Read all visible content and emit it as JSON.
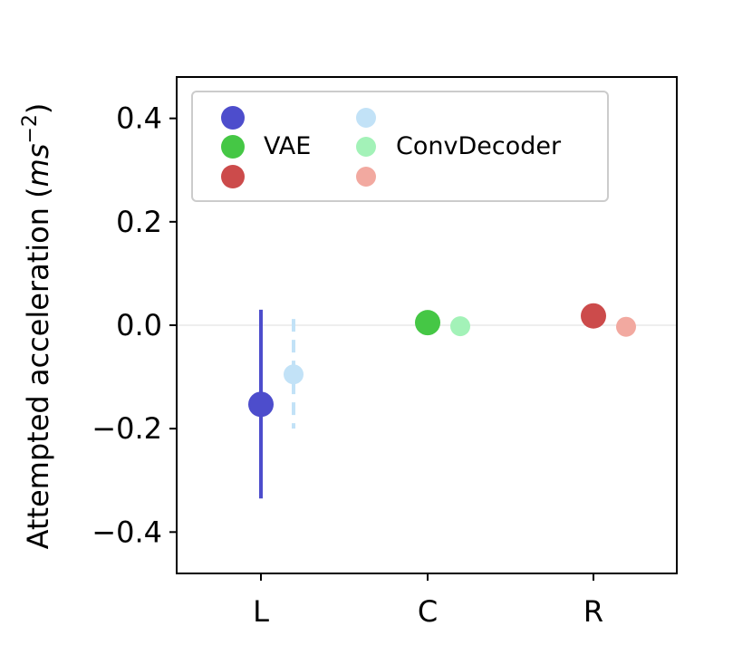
{
  "chart_data": {
    "type": "scatter",
    "categories": [
      "L",
      "C",
      "R"
    ],
    "ylabel": "Attempted acceleration",
    "ylabel_unit_base": "ms",
    "ylabel_unit_exp": "−2",
    "ylim": [
      -0.48,
      0.48
    ],
    "yticks": [
      0.4,
      0.2,
      0.0,
      -0.2,
      -0.4
    ],
    "ytick_labels": [
      "0.4",
      "0.2",
      "0.0",
      "−0.2",
      "−0.4"
    ],
    "zero_line": true,
    "legend_placement": "top-left",
    "series": [
      {
        "name": "VAE",
        "offset": "left",
        "line_style": "solid",
        "colors": [
          "#4d4dcc",
          "#45c745",
          "#cc4b4b"
        ],
        "points": [
          {
            "category": "L",
            "y": -0.153,
            "err_low": -0.335,
            "err_high": 0.03
          },
          {
            "category": "C",
            "y": 0.005,
            "err_low": 0.005,
            "err_high": 0.005
          },
          {
            "category": "R",
            "y": 0.018,
            "err_low": 0.018,
            "err_high": 0.018
          }
        ]
      },
      {
        "name": "ConvDecoder",
        "offset": "right",
        "line_style": "dashed",
        "colors": [
          "#c2e2f7",
          "#a3f2b8",
          "#f2a9a0"
        ],
        "points": [
          {
            "category": "L",
            "y": -0.095,
            "err_low": -0.2,
            "err_high": 0.012
          },
          {
            "category": "C",
            "y": -0.002,
            "err_low": -0.002,
            "err_high": -0.002
          },
          {
            "category": "R",
            "y": -0.003,
            "err_low": -0.003,
            "err_high": -0.003
          }
        ]
      }
    ]
  }
}
